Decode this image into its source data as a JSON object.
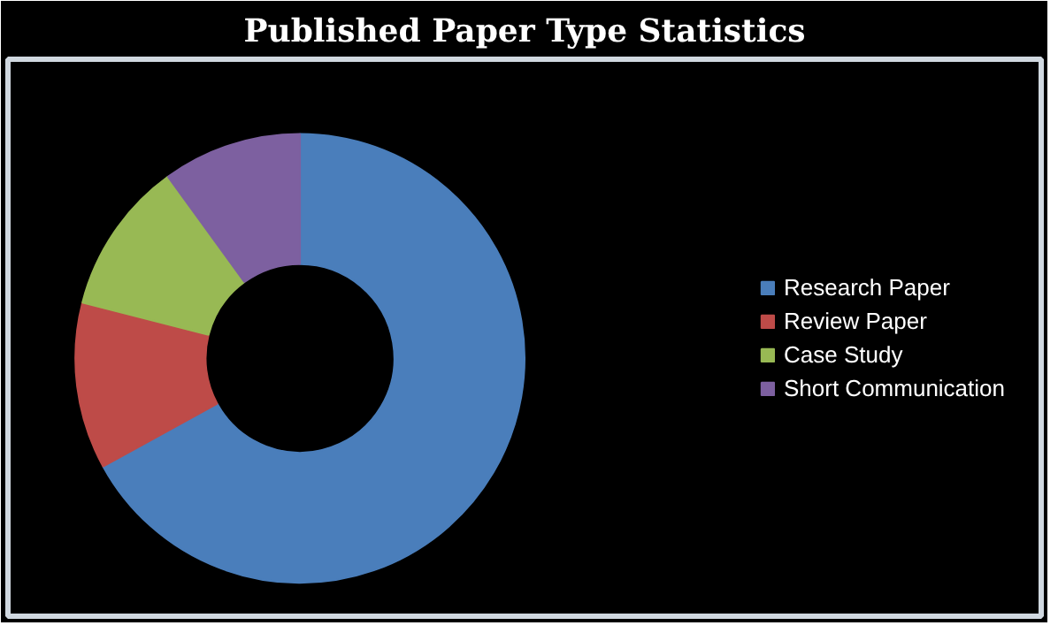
{
  "chart_data": {
    "type": "donut",
    "title": "Published Paper Type Statistics",
    "categories": [
      "Research Paper",
      "Review Paper",
      "Case Study",
      "Short Communication"
    ],
    "values": [
      67,
      12,
      11,
      10
    ],
    "colors": [
      "#4a7ebb",
      "#be4b48",
      "#98b954",
      "#7d60a0"
    ],
    "legend": "right"
  }
}
